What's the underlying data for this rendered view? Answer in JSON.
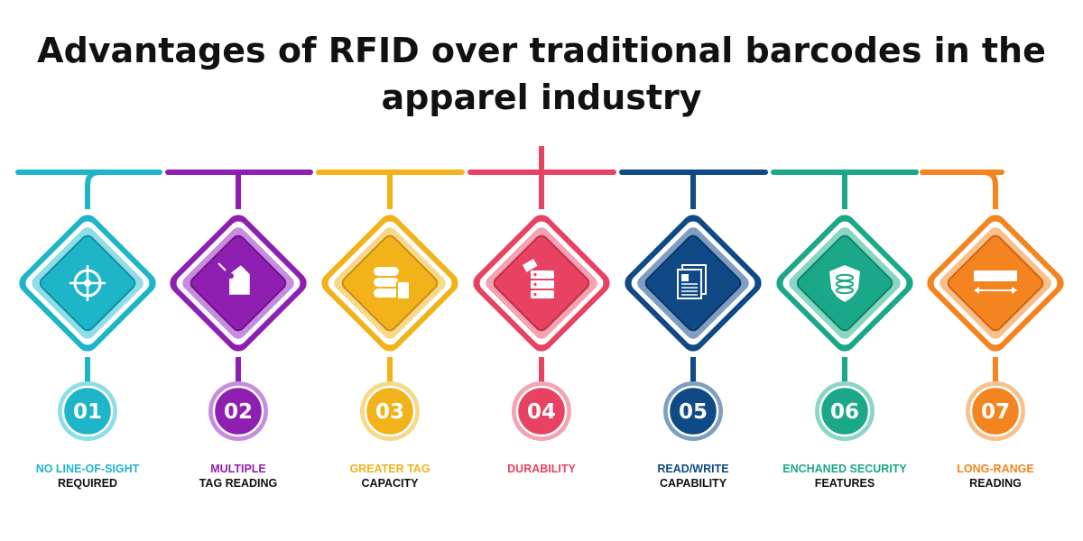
{
  "title": {
    "line1": "Advantages of RFID over traditional barcodes in the",
    "line2": "apparel industry"
  },
  "steps": [
    {
      "number": "01",
      "label1": "NO LINE-OF-SIGHT",
      "label2": "REQUIRED",
      "icon": "crosshair-icon",
      "color": "#1fb5c9",
      "light": "#8fdde8",
      "dark": "#0f8fa3"
    },
    {
      "number": "02",
      "label1": "MULTIPLE",
      "label2": "TAG READING",
      "icon": "tag-icon",
      "color": "#8e1fb0",
      "light": "#c98be0",
      "dark": "#6a1487"
    },
    {
      "number": "03",
      "label1": "GREATER TAG",
      "label2": "CAPACITY",
      "icon": "database-icon",
      "color": "#f2b21a",
      "light": "#f8d88a",
      "dark": "#c98e0c"
    },
    {
      "number": "04",
      "label1": "DURABILITY",
      "label2": "",
      "icon": "server-icon",
      "color": "#e84262",
      "light": "#f4a3b3",
      "dark": "#c42a49"
    },
    {
      "number": "05",
      "label1": "READ/WRITE",
      "label2": "CAPABILITY",
      "icon": "documents-icon",
      "color": "#0f4a86",
      "light": "#7f9fc2",
      "dark": "#0a3563"
    },
    {
      "number": "06",
      "label1": "ENCHANED SECURITY",
      "label2": "FEATURES",
      "icon": "shield-database-icon",
      "color": "#1aa889",
      "light": "#8ad6c4",
      "dark": "#0f8269"
    },
    {
      "number": "07",
      "label1": "LONG-RANGE",
      "label2": "READING",
      "icon": "range-arrow-icon",
      "color": "#f4841f",
      "light": "#f9c08c",
      "dark": "#cf6410"
    }
  ]
}
